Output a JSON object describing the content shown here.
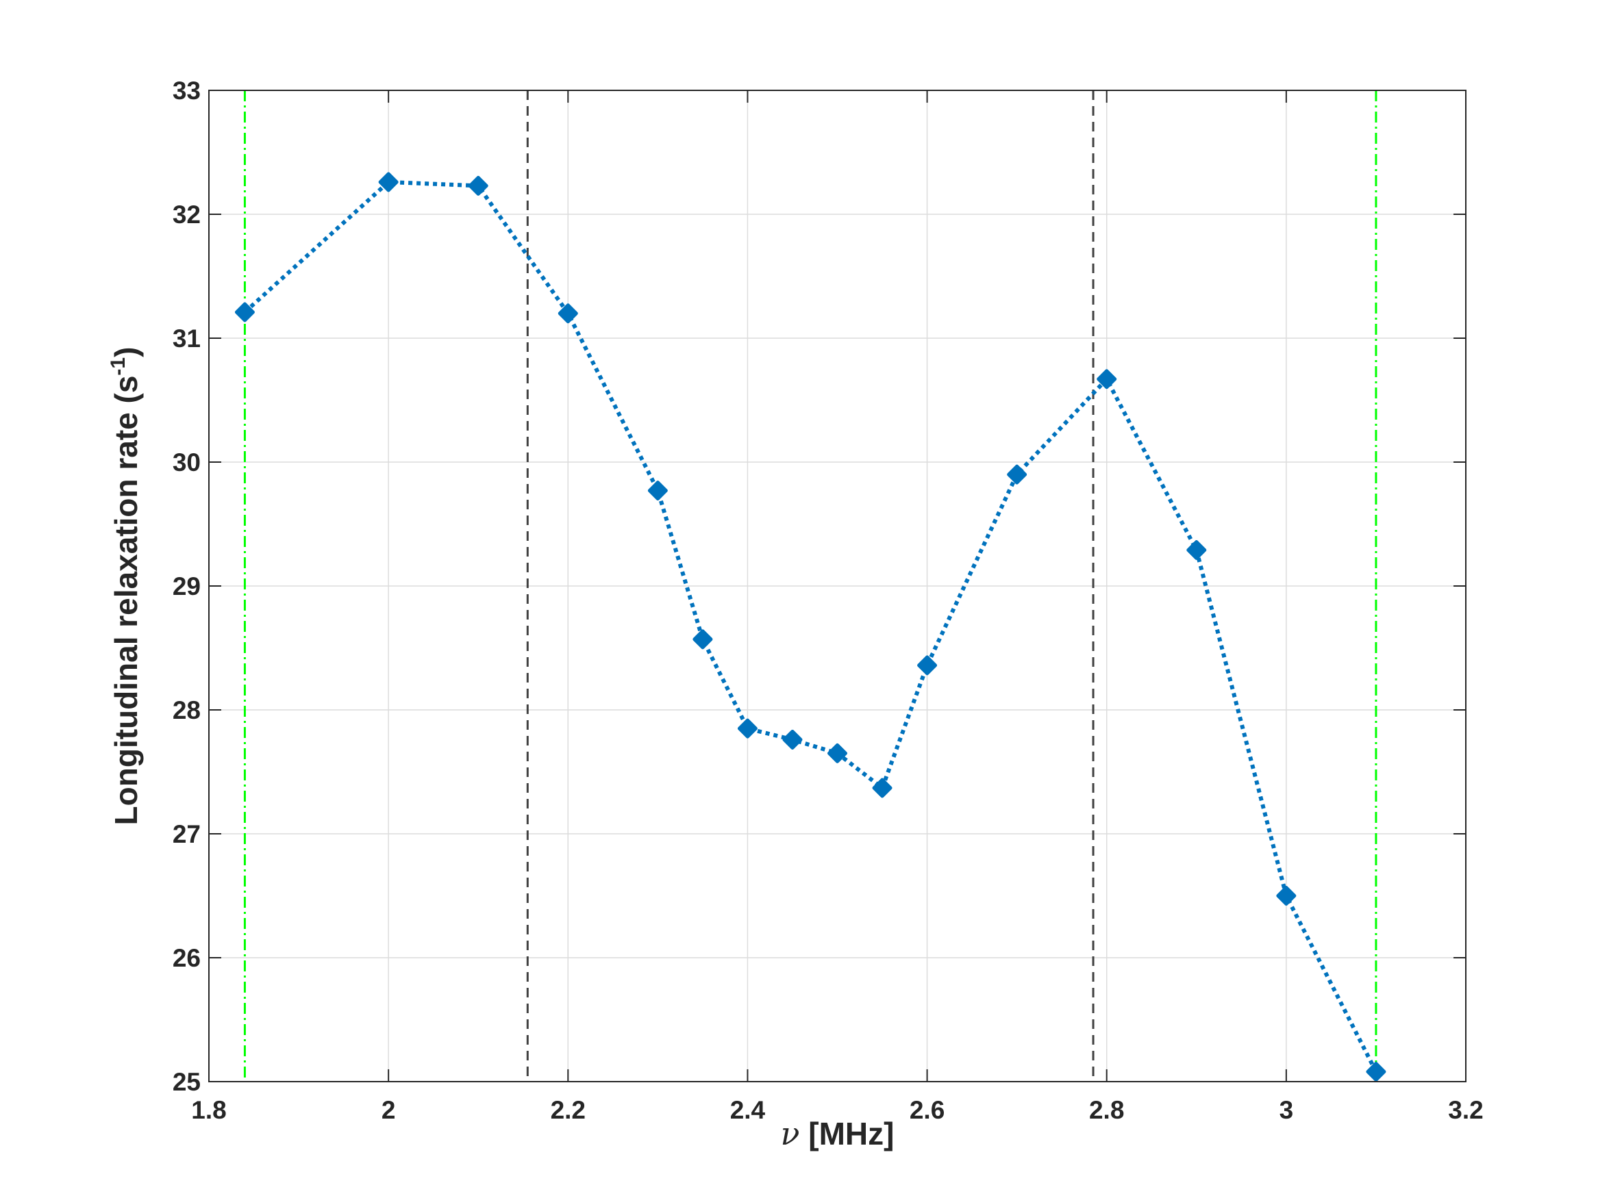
{
  "chart_data": {
    "type": "line",
    "xlabel_symbol": "ν",
    "xlabel_text": " [MHz]",
    "ylabel_main": "Longitudinal relaxation rate (s",
    "ylabel_sup": "-1",
    "ylabel_end": ")",
    "xlim": [
      1.8,
      3.2
    ],
    "ylim": [
      25,
      33
    ],
    "xticks": [
      1.8,
      2,
      2.2,
      2.4,
      2.6,
      2.8,
      3,
      3.2
    ],
    "xtick_labels": [
      "1.8",
      "2",
      "2.2",
      "2.4",
      "2.6",
      "2.8",
      "3",
      "3.2"
    ],
    "yticks": [
      25,
      26,
      27,
      28,
      29,
      30,
      31,
      32,
      33
    ],
    "ytick_labels": [
      "25",
      "26",
      "27",
      "28",
      "29",
      "30",
      "31",
      "32",
      "33"
    ],
    "grid": true,
    "series": [
      {
        "x": [
          1.84,
          2.0,
          2.1,
          2.2,
          2.3,
          2.35,
          2.4,
          2.45,
          2.5,
          2.55,
          2.6,
          2.7,
          2.8,
          2.9,
          3.0,
          3.1
        ],
        "y": [
          31.21,
          32.26,
          32.23,
          31.2,
          29.77,
          28.57,
          27.85,
          27.76,
          27.65,
          27.37,
          28.36,
          29.9,
          30.67,
          29.29,
          26.5,
          25.08
        ],
        "color": "#0072BD",
        "line_style": "dotted",
        "marker": "diamond"
      }
    ],
    "vertical_lines": [
      {
        "x": 1.84,
        "color": "#00FF00",
        "style": "dash-dot"
      },
      {
        "x": 2.155,
        "color": "#404040",
        "style": "dashed"
      },
      {
        "x": 2.785,
        "color": "#404040",
        "style": "dashed"
      },
      {
        "x": 3.1,
        "color": "#00FF00",
        "style": "dash-dot"
      }
    ]
  }
}
